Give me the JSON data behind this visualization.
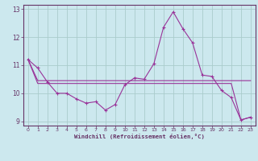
{
  "xlabel": "Windchill (Refroidissement éolien,°C)",
  "bg_color": "#cce8ee",
  "grid_color": "#aacccc",
  "line_color": "#993399",
  "spine_color": "#663366",
  "xlim": [
    -0.5,
    23.5
  ],
  "ylim": [
    8.85,
    13.15
  ],
  "yticks": [
    9,
    10,
    11,
    12,
    13
  ],
  "xticks": [
    0,
    1,
    2,
    3,
    4,
    5,
    6,
    7,
    8,
    9,
    10,
    11,
    12,
    13,
    14,
    15,
    16,
    17,
    18,
    19,
    20,
    21,
    22,
    23
  ],
  "series_wiggly": [
    11.2,
    10.9,
    10.4,
    10.0,
    10.0,
    9.8,
    9.65,
    9.7,
    9.4,
    9.6,
    10.3,
    10.55,
    10.5,
    11.05,
    12.35,
    12.9,
    12.3,
    11.8,
    10.65,
    10.6,
    10.1,
    9.85,
    9.05,
    9.15
  ],
  "series_flat1": [
    11.2,
    10.45,
    10.45,
    10.45,
    10.45,
    10.45,
    10.45,
    10.45,
    10.45,
    10.45,
    10.45,
    10.45,
    10.45,
    10.45,
    10.45,
    10.45,
    10.45,
    10.45,
    10.45,
    10.45,
    10.45,
    10.45,
    10.45,
    10.45
  ],
  "series_flat2": [
    11.2,
    10.35,
    10.35,
    10.35,
    10.35,
    10.35,
    10.35,
    10.35,
    10.35,
    10.35,
    10.35,
    10.35,
    10.35,
    10.35,
    10.35,
    10.35,
    10.35,
    10.35,
    10.35,
    10.35,
    10.35,
    10.35,
    9.05,
    9.15
  ]
}
